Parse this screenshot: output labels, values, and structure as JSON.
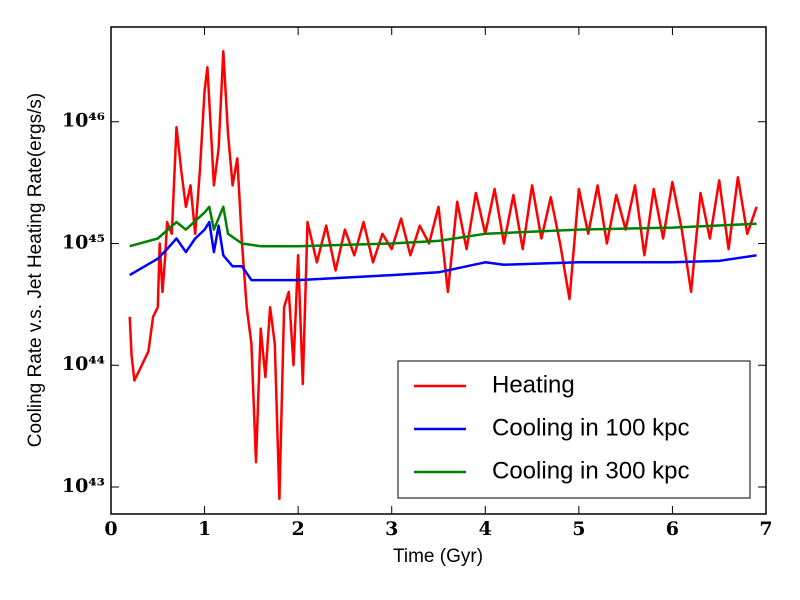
{
  "chart_data": {
    "type": "line",
    "xlabel": "Time (Gyr)",
    "ylabel": "Cooling Rate v.s. Jet Heating Rate(ergs/s)",
    "xlim": [
      0,
      7
    ],
    "xticks": [
      0,
      1,
      2,
      3,
      4,
      5,
      6,
      7
    ],
    "ylim": [
      6e+42,
      6e+46
    ],
    "yscale": "log",
    "yticks": [
      {
        "value": 1e+43,
        "label": "10⁴³"
      },
      {
        "value": 1e+44,
        "label": "10⁴⁴"
      },
      {
        "value": 1e+45,
        "label": "10⁴⁵"
      },
      {
        "value": 1e+46,
        "label": "10⁴⁶"
      }
    ],
    "legend": "lower right",
    "series": [
      {
        "name": "Heating",
        "color": "#ff0000",
        "x": [
          0.2,
          0.22,
          0.25,
          0.3,
          0.4,
          0.45,
          0.5,
          0.52,
          0.55,
          0.58,
          0.6,
          0.65,
          0.7,
          0.75,
          0.8,
          0.85,
          0.9,
          0.95,
          1.0,
          1.03,
          1.07,
          1.1,
          1.15,
          1.2,
          1.25,
          1.3,
          1.35,
          1.4,
          1.45,
          1.5,
          1.55,
          1.6,
          1.65,
          1.7,
          1.75,
          1.8,
          1.85,
          1.9,
          1.95,
          2.0,
          2.05,
          2.1,
          2.2,
          2.3,
          2.4,
          2.5,
          2.6,
          2.7,
          2.8,
          2.9,
          3.0,
          3.1,
          3.2,
          3.3,
          3.4,
          3.5,
          3.6,
          3.7,
          3.8,
          3.9,
          4.0,
          4.1,
          4.2,
          4.3,
          4.4,
          4.5,
          4.6,
          4.7,
          4.8,
          4.9,
          5.0,
          5.1,
          5.2,
          5.3,
          5.4,
          5.5,
          5.6,
          5.7,
          5.8,
          5.9,
          6.0,
          6.1,
          6.2,
          6.3,
          6.4,
          6.5,
          6.6,
          6.7,
          6.8,
          6.9
        ],
        "values": [
          2.5e+44,
          1.2e+44,
          7.5e+43,
          9e+43,
          1.3e+44,
          2.5e+44,
          3e+44,
          1e+45,
          4e+44,
          8e+44,
          1.5e+45,
          1.2e+45,
          9e+45,
          4e+45,
          2e+45,
          3e+45,
          1.2e+45,
          4e+45,
          1.8e+46,
          2.8e+46,
          8e+45,
          3e+45,
          6e+45,
          3.8e+46,
          8e+45,
          3e+45,
          5e+45,
          1e+45,
          3e+44,
          1.5e+44,
          1.6e+43,
          2e+44,
          8e+43,
          3e+44,
          1.5e+44,
          8e+42,
          3e+44,
          4e+44,
          1e+44,
          8e+44,
          7e+43,
          1.5e+45,
          7e+44,
          1.4e+45,
          6e+44,
          1.3e+45,
          8e+44,
          1.5e+45,
          7e+44,
          1.2e+45,
          9e+44,
          1.6e+45,
          8e+44,
          1.4e+45,
          1e+45,
          2e+45,
          4e+44,
          2.2e+45,
          9e+44,
          2.6e+45,
          1.2e+45,
          2.8e+45,
          1e+45,
          2.5e+45,
          9e+44,
          3e+45,
          1.1e+45,
          2.4e+45,
          1e+45,
          3.5e+44,
          2.8e+45,
          1.2e+45,
          3e+45,
          1e+45,
          2.5e+45,
          1.3e+45,
          3e+45,
          8e+44,
          2.8e+45,
          1.1e+45,
          3.2e+45,
          1.3e+45,
          4e+44,
          2.6e+45,
          1.1e+45,
          3.3e+45,
          9e+44,
          3.5e+45,
          1.2e+45,
          2e+45
        ]
      },
      {
        "name": "Cooling in 100 kpc",
        "color": "#0000ff",
        "x": [
          0.2,
          0.5,
          0.6,
          0.7,
          0.8,
          0.9,
          1.0,
          1.05,
          1.1,
          1.15,
          1.2,
          1.3,
          1.4,
          1.5,
          2.0,
          3.0,
          3.5,
          4.0,
          4.2,
          5.0,
          6.0,
          6.5,
          6.9
        ],
        "values": [
          5.5e+44,
          7.5e+44,
          9e+44,
          1.1e+45,
          8.5e+44,
          1.1e+45,
          1.3e+45,
          1.5e+45,
          8.5e+44,
          1.4e+45,
          8e+44,
          6.5e+44,
          6.5e+44,
          5e+44,
          5e+44,
          5.5e+44,
          5.8e+44,
          7e+44,
          6.7e+44,
          7e+44,
          7e+44,
          7.2e+44,
          8e+44
        ]
      },
      {
        "name": "Cooling in 300 kpc",
        "color": "#008000",
        "x": [
          0.2,
          0.5,
          0.7,
          0.8,
          1.0,
          1.05,
          1.1,
          1.2,
          1.25,
          1.4,
          1.6,
          2.0,
          3.0,
          3.5,
          4.0,
          5.0,
          6.0,
          6.9
        ],
        "values": [
          9.5e+44,
          1.1e+45,
          1.5e+45,
          1.3e+45,
          1.8e+45,
          2e+45,
          1.3e+45,
          2e+45,
          1.2e+45,
          1e+45,
          9.5e+44,
          9.5e+44,
          1e+45,
          1.05e+45,
          1.2e+45,
          1.3e+45,
          1.35e+45,
          1.45e+45
        ]
      }
    ]
  }
}
